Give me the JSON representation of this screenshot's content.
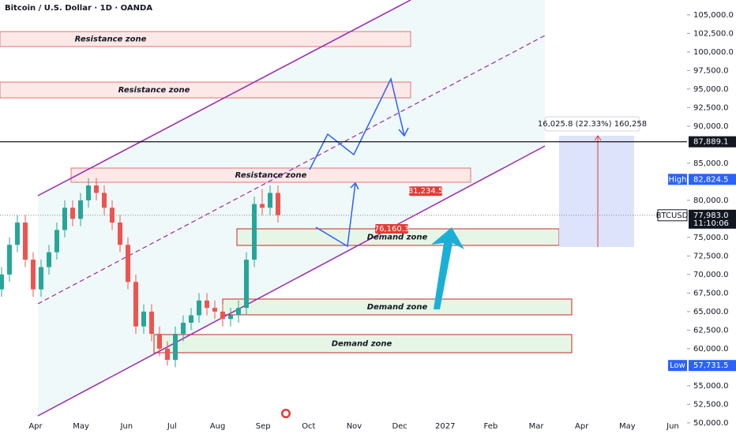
{
  "chart_data": {
    "type": "candlestick",
    "title": "Bitcoin / U.S. Dollar · 1D · OANDA",
    "symbol": "BTCUSD",
    "countdown": "11:10:06",
    "categories": [
      "Apr",
      "May",
      "Jun",
      "Jul",
      "Aug",
      "Sep",
      "Oct",
      "Nov",
      "Dec",
      "2027",
      "Feb",
      "Mar",
      "Apr",
      "May",
      "Jun"
    ],
    "open": [
      68000,
      70000,
      74000,
      77000,
      72000,
      68000,
      71000,
      73000,
      76000,
      79000,
      77500,
      80000,
      82000,
      81000,
      79000,
      77000,
      74000,
      69000,
      63000,
      65000,
      62000,
      60000,
      58500,
      62000,
      63500,
      64500,
      66500,
      65500,
      65000,
      64000,
      64500,
      65500,
      72000,
      79500,
      79000,
      81000
    ],
    "high": [
      71000,
      75000,
      78000,
      78000,
      73000,
      72000,
      74000,
      77000,
      80000,
      80000,
      81000,
      83000,
      83000,
      82000,
      80000,
      78000,
      75000,
      70000,
      66000,
      66000,
      63000,
      61000,
      63000,
      64500,
      65500,
      67500,
      67500,
      66500,
      66000,
      65500,
      66500,
      73000,
      80500,
      81500,
      82000,
      82000
    ],
    "low": [
      67000,
      69000,
      73000,
      71000,
      67000,
      67000,
      70000,
      72000,
      75000,
      76500,
      76500,
      79000,
      80000,
      78000,
      76000,
      73000,
      68000,
      62000,
      62000,
      61000,
      59000,
      57731.5,
      57500,
      61000,
      62500,
      63500,
      64500,
      64000,
      63000,
      63000,
      63500,
      64500,
      71000,
      78000,
      78000,
      77000
    ],
    "close": [
      70000,
      74000,
      77000,
      72000,
      68000,
      71000,
      73000,
      76000,
      79000,
      77500,
      80000,
      82000,
      81000,
      79000,
      77000,
      74000,
      69000,
      63000,
      65000,
      62000,
      60000,
      58500,
      62000,
      63500,
      64500,
      66500,
      65500,
      65000,
      64000,
      64500,
      65500,
      72000,
      79500,
      79000,
      81000,
      78000
    ],
    "up_color": "#26a69a",
    "down_color": "#ef5350",
    "ylim": [
      48500,
      107000
    ],
    "yticks": [
      {
        "value": 105000,
        "label": "105,000.0"
      },
      {
        "value": 102500,
        "label": "102,500.0"
      },
      {
        "value": 100000,
        "label": "100,000.0"
      },
      {
        "value": 97500,
        "label": "97,500.0"
      },
      {
        "value": 95000,
        "label": "95,000.0"
      },
      {
        "value": 92500,
        "label": "92,500.0"
      },
      {
        "value": 90000,
        "label": "90,000.0"
      },
      {
        "value": 85000,
        "label": "85,000.0"
      },
      {
        "value": 80000,
        "label": "80,000.0"
      },
      {
        "value": 75000,
        "label": "75,000.0"
      },
      {
        "value": 72500,
        "label": "72,500.0"
      },
      {
        "value": 70000,
        "label": "70,000.0"
      },
      {
        "value": 67500,
        "label": "67,500.0"
      },
      {
        "value": 65000,
        "label": "65,000.0"
      },
      {
        "value": 62500,
        "label": "62,500.0"
      },
      {
        "value": 60000,
        "label": "60,000.0"
      },
      {
        "value": 55000,
        "label": "55,000.0"
      },
      {
        "value": 52500,
        "label": "52,500.0"
      },
      {
        "value": 50000,
        "label": "50,000.0"
      }
    ],
    "horizontal_line": {
      "value": 87889.1,
      "label": "87,889.1"
    },
    "high_marker": {
      "name": "High",
      "value": 82824.5,
      "label": "82,824.5"
    },
    "low_marker": {
      "name": "Low",
      "value": 57731.5,
      "label": "57,731.5"
    },
    "last_price": {
      "value": 77983.0,
      "label": "77,983.0"
    },
    "price_tags": [
      {
        "value": 81234.5,
        "label": "81,234.5"
      },
      {
        "value": 76160.3,
        "label": "76,160.3"
      }
    ],
    "measure_label": "16,025.8 (22.33%) 160,258",
    "zones": [
      {
        "label": "Resistance zone"
      },
      {
        "label": "Resistance zone"
      },
      {
        "label": "Resistance zone"
      },
      {
        "label": "Demand zone"
      },
      {
        "label": "Demand zone"
      },
      {
        "label": "Demand zone"
      }
    ]
  }
}
